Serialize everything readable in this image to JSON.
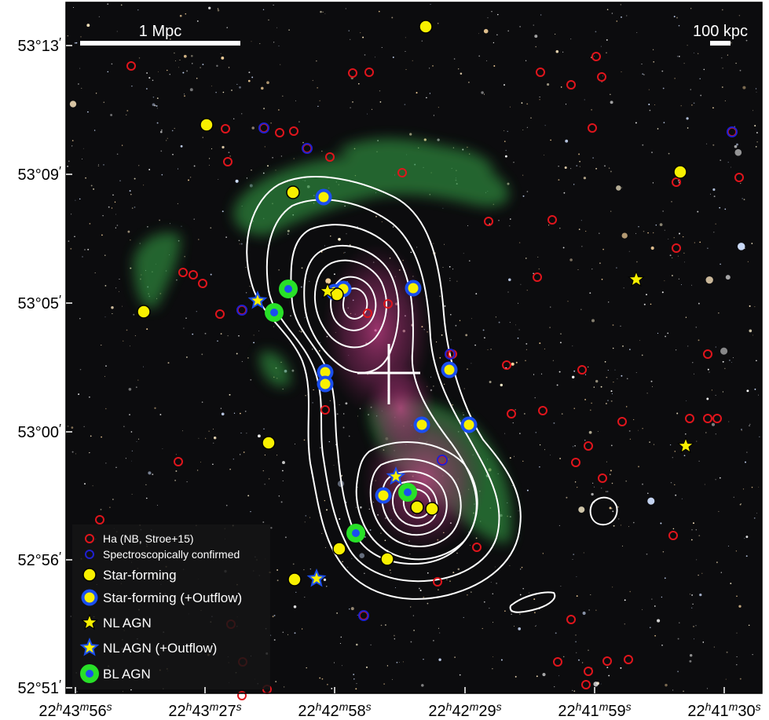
{
  "scale_bars": {
    "left_label": "1 Mpc",
    "right_label": "100 kpc"
  },
  "y_ticks": [
    {
      "main": "53°13",
      "prime": "′"
    },
    {
      "main": "53°09",
      "prime": "′"
    },
    {
      "main": "53°05",
      "prime": "′"
    },
    {
      "main": "53°00",
      "prime": "′"
    },
    {
      "main": "52°56",
      "prime": "′"
    },
    {
      "main": "52°51",
      "prime": "′"
    }
  ],
  "x_ticks": [
    {
      "h": "22",
      "m": "43",
      "s": "56"
    },
    {
      "h": "22",
      "m": "43",
      "s": "27"
    },
    {
      "h": "22",
      "m": "42",
      "s": "58"
    },
    {
      "h": "22",
      "m": "42",
      "s": "29"
    },
    {
      "h": "22",
      "m": "41",
      "s": "59"
    },
    {
      "h": "22",
      "m": "41",
      "s": "30"
    }
  ],
  "x_tick_suffix": {
    "h": "h",
    "m": "m",
    "s": "s"
  },
  "legend": [
    {
      "key": "ha",
      "label": "Ha (NB, Stroe+15)"
    },
    {
      "key": "spec",
      "label": "Spectroscopically confirmed"
    },
    {
      "key": "sf",
      "label": "Star-forming"
    },
    {
      "key": "sfo",
      "label": "Star-forming (+Outflow)"
    },
    {
      "key": "nl",
      "label": "NL AGN"
    },
    {
      "key": "nlo",
      "label": "NL AGN (+Outflow)"
    },
    {
      "key": "bl",
      "label": "BL AGN"
    }
  ],
  "colors": {
    "sky": "#0c0c0e",
    "radio_halo": "#2f8a3c",
    "xray": "#a0306f",
    "contour": "#ffffff",
    "ha_marker": "#e0151c",
    "spec_marker": "#2020d0",
    "star_forming": "#f8f000",
    "outflow_ring": "#1a4ef0",
    "bl_agn_ring": "#28e028",
    "legend_bg": "#151515"
  }
}
